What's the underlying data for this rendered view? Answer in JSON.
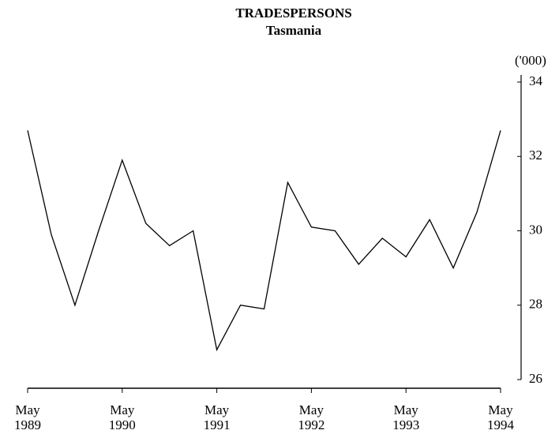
{
  "chart_data": {
    "type": "line",
    "title": "TRADESPERSONS",
    "subtitle": "Tasmania",
    "unit_label": "('000)",
    "categories": [
      "May 1989",
      null,
      null,
      null,
      "May 1990",
      null,
      null,
      null,
      "May 1991",
      null,
      null,
      null,
      "May 1992",
      null,
      null,
      null,
      "May 1993",
      null,
      null,
      null,
      "May 1994"
    ],
    "values": [
      32.7,
      29.9,
      28.0,
      30.0,
      31.9,
      30.2,
      29.6,
      30.0,
      26.8,
      28.0,
      27.9,
      31.3,
      30.1,
      30.0,
      29.1,
      29.8,
      29.3,
      30.3,
      29.0,
      30.5,
      32.7
    ],
    "color": "#000000",
    "ylim": [
      26,
      34
    ],
    "yticks": [
      26,
      28,
      30,
      32,
      34
    ],
    "grid": false
  }
}
